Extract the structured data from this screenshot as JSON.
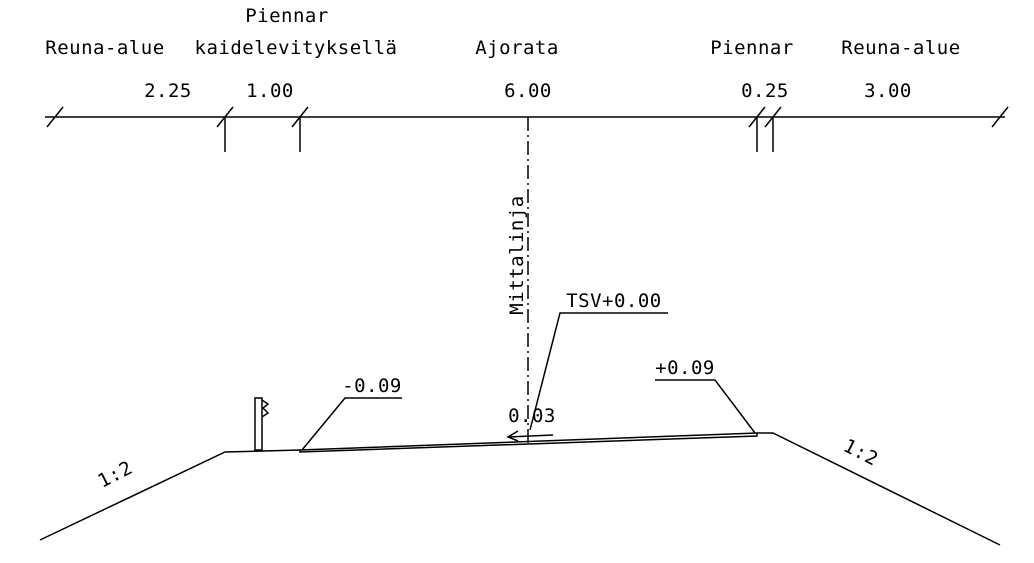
{
  "header": {
    "labels": [
      "Reuna-alue",
      "Piennar",
      "kaidelevityksellä",
      "Ajorata",
      "Piennar",
      "Reuna-alue"
    ]
  },
  "dimensions": [
    "2.25",
    "1.00",
    "6.00",
    "0.25",
    "3.00"
  ],
  "centerline": "Mittalinja",
  "annotations": {
    "top_of_road": "TSV+0.00",
    "left_edge": "-0.09",
    "right_edge": "+0.09",
    "crossfall": "0.03"
  },
  "slopes": [
    "1:2",
    "1:2"
  ]
}
